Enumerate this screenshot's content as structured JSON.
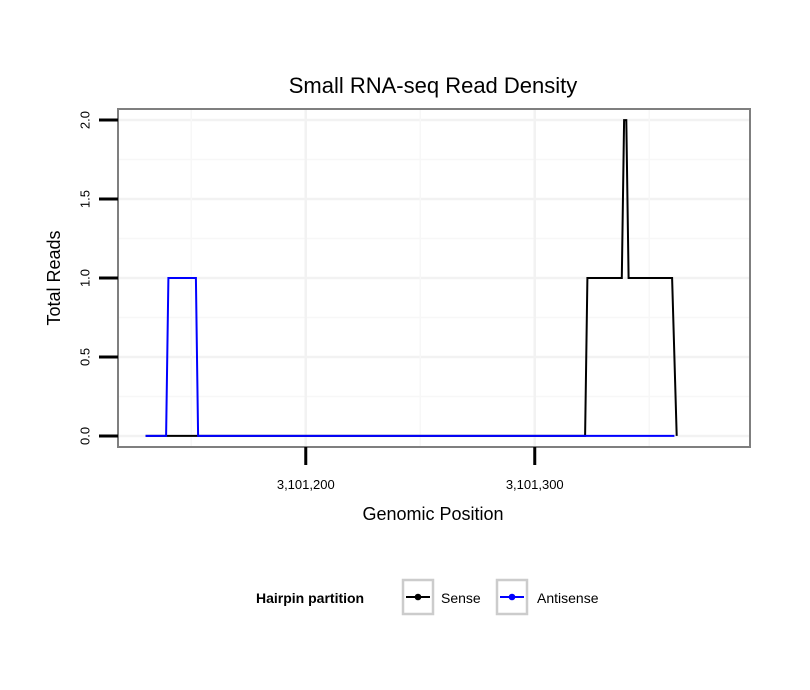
{
  "chart_data": {
    "type": "line",
    "title": "Small RNA-seq Read Density",
    "xlabel": "Genomic Position",
    "ylabel": "Total Reads",
    "xlim": [
      3101118,
      3101394
    ],
    "ylim": [
      -0.07,
      2.07
    ],
    "x_ticks": [
      3101200,
      3101300
    ],
    "x_tick_labels": [
      "3,101,200",
      "3,101,300"
    ],
    "y_ticks": [
      0.0,
      0.5,
      1.0,
      1.5,
      2.0
    ],
    "y_tick_labels": [
      "0.0",
      "0.5",
      "1.0",
      "1.5",
      "2.0"
    ],
    "grid": true,
    "legend": {
      "title": "Hairpin partition",
      "position": "bottom",
      "entries": [
        "Sense",
        "Antisense"
      ]
    },
    "series": [
      {
        "name": "Sense",
        "color": "#000000",
        "x": [
          3101130,
          3101322,
          3101323,
          3101338,
          3101339,
          3101340,
          3101341,
          3101342,
          3101360,
          3101362
        ],
        "y": [
          0,
          0,
          1,
          1,
          2,
          2,
          1,
          1,
          1,
          0
        ]
      },
      {
        "name": "Antisense",
        "color": "#0000ff",
        "x": [
          3101130,
          3101139,
          3101140,
          3101152,
          3101153,
          3101322,
          3101361
        ],
        "y": [
          0,
          0,
          1,
          1,
          0,
          0,
          0
        ]
      }
    ]
  }
}
